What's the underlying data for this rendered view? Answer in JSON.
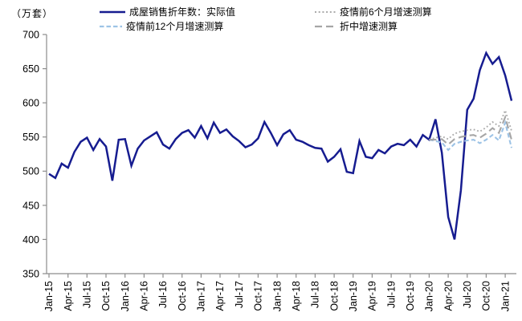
{
  "chart_data": {
    "type": "line",
    "title": "",
    "ylabel": "（万套）",
    "ylim": [
      350,
      700
    ],
    "yticks": [
      700,
      650,
      600,
      550,
      500,
      450,
      400,
      350
    ],
    "grid": false,
    "legend_position": "top",
    "axis_color": "#8C8C8C",
    "n_months": 74,
    "x_start": "Jan-15",
    "x_end": "Feb-21",
    "x_tick_labels": [
      "Jan-15",
      "Apr-15",
      "Jul-15",
      "Oct-15",
      "Jan-16",
      "Apr-16",
      "Jul-16",
      "Oct-16",
      "Jan-17",
      "Apr-17",
      "Jul-17",
      "Oct-17",
      "Jan-18",
      "Apr-18",
      "Jul-18",
      "Oct-18",
      "Jan-19",
      "Apr-19",
      "Jul-19",
      "Oct-19",
      "Jan-20",
      "Apr-20",
      "Jul-20",
      "Oct-20",
      "Jan-21"
    ],
    "series": [
      {
        "name": "成屋销售折年数：实际值",
        "style": "solid",
        "color": "#161C90",
        "start": 0,
        "values": [
          496,
          490,
          511,
          505,
          528,
          543,
          549,
          531,
          547,
          536,
          486,
          546,
          547,
          508,
          533,
          545,
          551,
          557,
          539,
          533,
          547,
          556,
          560,
          549,
          566,
          548,
          571,
          556,
          561,
          551,
          544,
          535,
          539,
          548,
          572,
          556,
          538,
          554,
          560,
          546,
          543,
          538,
          534,
          533,
          514,
          521,
          532,
          499,
          497,
          544,
          521,
          519,
          531,
          526,
          536,
          540,
          538,
          546,
          536,
          553,
          546,
          576,
          527,
          433,
          400,
          472,
          590,
          606,
          648,
          673,
          657,
          667,
          640,
          603
        ]
      },
      {
        "name": "疫情前6个月增速测算",
        "style": "dotted",
        "color": "#ABABAB",
        "start": 60,
        "values": [
          546,
          549,
          551,
          547,
          555,
          558,
          560,
          561,
          558,
          564,
          572,
          566,
          589,
          559
        ]
      },
      {
        "name": "疫情前12个月增速测算",
        "style": "dashed",
        "color": "#9DC3E6",
        "start": 60,
        "values": [
          546,
          544,
          542,
          531,
          540,
          543,
          545,
          546,
          541,
          546,
          553,
          545,
          571,
          534
        ]
      },
      {
        "name": "折中增速测算",
        "style": "longdash",
        "color": "#A6A6A6",
        "start": 60,
        "values": [
          546,
          546,
          547,
          539,
          547,
          550,
          552,
          553,
          549,
          555,
          563,
          556,
          579,
          546
        ]
      }
    ]
  }
}
